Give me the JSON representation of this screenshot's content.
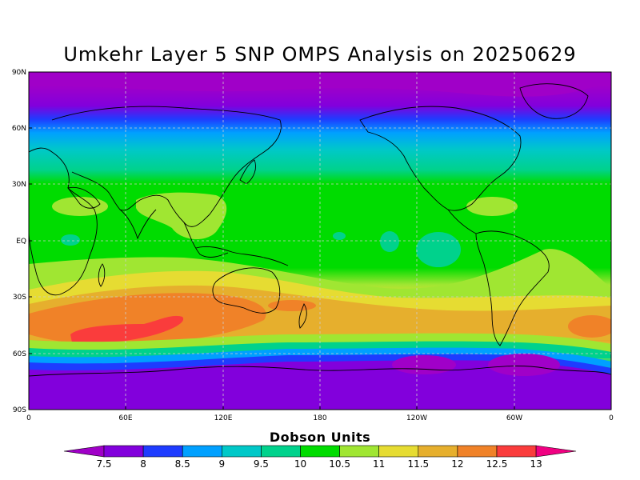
{
  "title": "Umkehr Layer 5 SNP OMPS Analysis on 20250629",
  "lat_ticks": [
    "90N",
    "60N",
    "30N",
    "EQ",
    "30S",
    "60S",
    "90S"
  ],
  "lon_ticks": [
    "0",
    "60E",
    "120E",
    "180",
    "120W",
    "60W",
    "0"
  ],
  "colorbar": {
    "title": "Dobson Units",
    "labels": [
      "7.5",
      "8",
      "8.5",
      "9",
      "9.5",
      "10",
      "10.5",
      "11",
      "11.5",
      "12",
      "12.5",
      "13"
    ],
    "colors": [
      "#a000c8",
      "#8200dc",
      "#1e3cff",
      "#00a0ff",
      "#00c8c8",
      "#00d28c",
      "#00dc00",
      "#a0e632",
      "#e6dc32",
      "#e6af2d",
      "#f08228",
      "#fa3c3c",
      "#f00082"
    ]
  },
  "map": {
    "projection": "cylindrical-equidistant",
    "lon_range": [
      0,
      360
    ],
    "lat_range": [
      -90,
      90
    ],
    "variable": "Umkehr Layer 5 ozone",
    "units": "Dobson Units",
    "gridlines": true
  }
}
